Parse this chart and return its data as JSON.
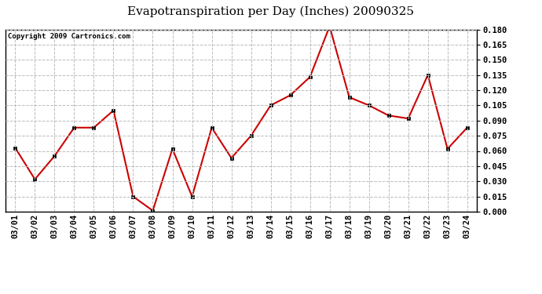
{
  "title": "Evapotranspiration per Day (Inches) 20090325",
  "copyright_text": "Copyright 2009 Cartronics.com",
  "x_labels": [
    "03/01",
    "03/02",
    "03/03",
    "03/04",
    "03/05",
    "03/06",
    "03/07",
    "03/08",
    "03/09",
    "03/10",
    "03/11",
    "03/12",
    "03/13",
    "03/14",
    "03/15",
    "03/16",
    "03/17",
    "03/18",
    "03/19",
    "03/20",
    "03/21",
    "03/22",
    "03/23",
    "03/24"
  ],
  "y_values": [
    0.063,
    0.032,
    0.055,
    0.083,
    0.083,
    0.1,
    0.015,
    0.001,
    0.062,
    0.015,
    0.083,
    0.053,
    0.075,
    0.105,
    0.115,
    0.133,
    0.183,
    0.113,
    0.105,
    0.095,
    0.092,
    0.135,
    0.062,
    0.083
  ],
  "line_color": "#cc0000",
  "marker_color": "#000000",
  "background_color": "#ffffff",
  "plot_bg_color": "#ffffff",
  "grid_color": "#bbbbbb",
  "ylim": [
    0.0,
    0.18
  ],
  "yticks": [
    0.0,
    0.015,
    0.03,
    0.045,
    0.06,
    0.075,
    0.09,
    0.105,
    0.12,
    0.135,
    0.15,
    0.165,
    0.18
  ],
  "title_fontsize": 11,
  "copyright_fontsize": 6.5,
  "tick_fontsize": 7.5
}
